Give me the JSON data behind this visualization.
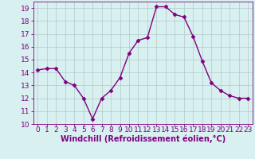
{
  "x": [
    0,
    1,
    2,
    3,
    4,
    5,
    6,
    7,
    8,
    9,
    10,
    11,
    12,
    13,
    14,
    15,
    16,
    17,
    18,
    19,
    20,
    21,
    22,
    23
  ],
  "y": [
    14.2,
    14.3,
    14.3,
    13.3,
    13.0,
    12.0,
    10.4,
    12.0,
    12.6,
    13.6,
    15.5,
    16.5,
    16.7,
    19.1,
    19.1,
    18.5,
    18.3,
    16.8,
    14.9,
    13.2,
    12.6,
    12.2,
    12.0,
    12.0
  ],
  "line_color": "#800080",
  "marker": "D",
  "marker_size": 2.5,
  "bg_color": "#d8f0f0",
  "grid_color": "#b0c8c8",
  "xlabel": "Windchill (Refroidissement éolien,°C)",
  "xlim": [
    -0.5,
    23.5
  ],
  "ylim": [
    10,
    19.5
  ],
  "yticks": [
    10,
    11,
    12,
    13,
    14,
    15,
    16,
    17,
    18,
    19
  ],
  "xticks": [
    0,
    1,
    2,
    3,
    4,
    5,
    6,
    7,
    8,
    9,
    10,
    11,
    12,
    13,
    14,
    15,
    16,
    17,
    18,
    19,
    20,
    21,
    22,
    23
  ],
  "tick_color": "#800080",
  "label_color": "#800080",
  "font_size": 6.5,
  "xlabel_fontsize": 7.0,
  "line_width": 1.0
}
